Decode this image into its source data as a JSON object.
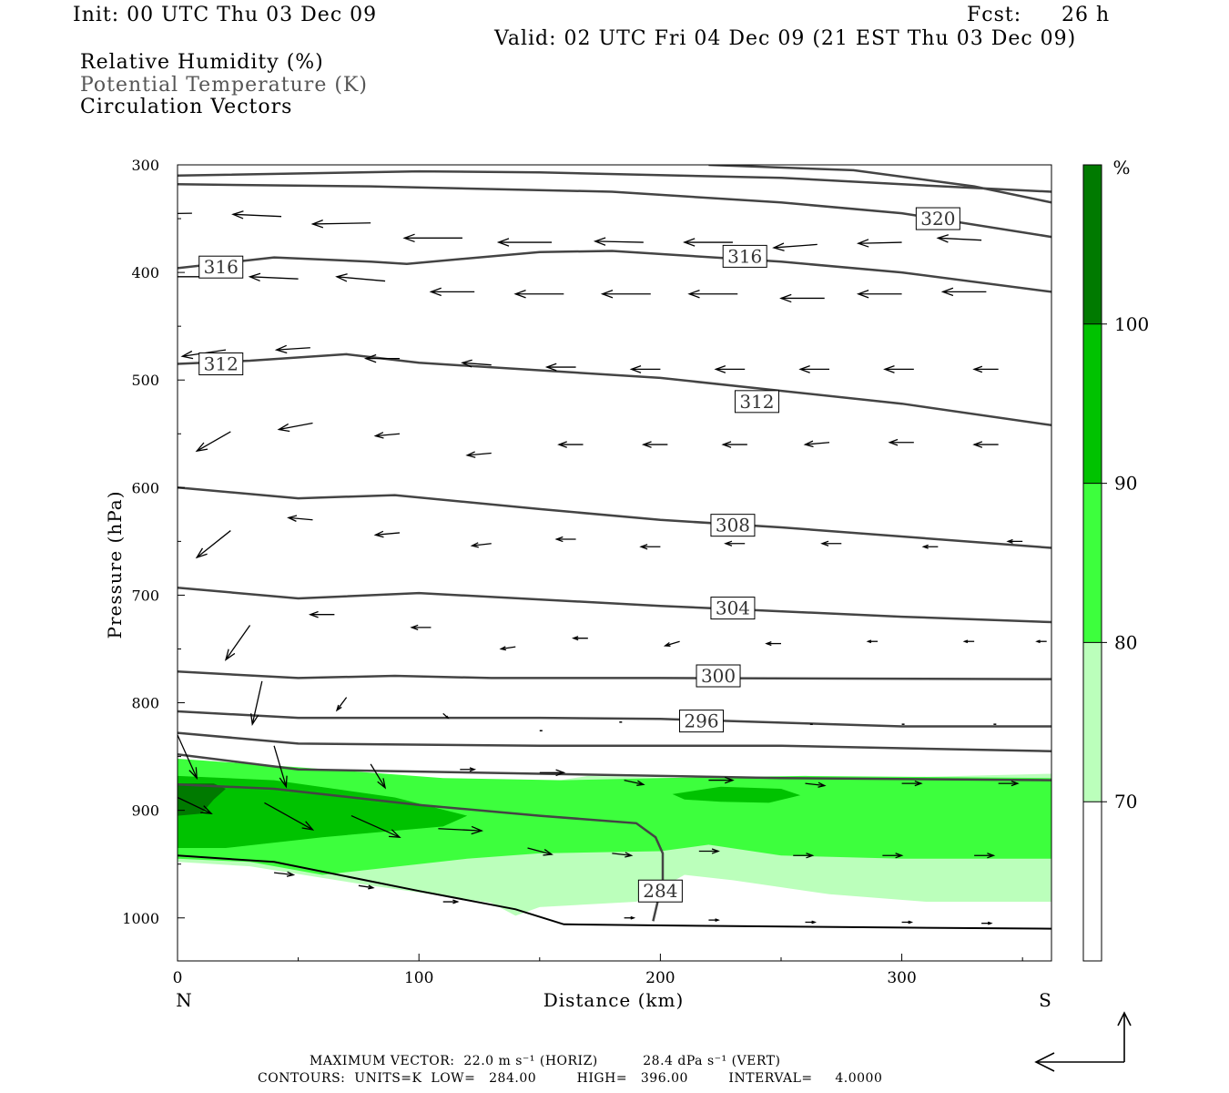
{
  "header": {
    "init": "Init: 00 UTC Thu 03 Dec 09",
    "fcst_label": "Fcst:",
    "fcst_value": "26 h",
    "valid": "Valid: 02 UTC Fri 04 Dec 09 (21 EST Thu 03 Dec 09)",
    "fields": [
      "Relative Humidity (%)",
      "Potential Temperature (K)",
      "Circulation Vectors"
    ]
  },
  "colors": {
    "rh_70": "#bbffbb",
    "rh_80": "#3dff3d",
    "rh_90": "#00c200",
    "rh_100": "#007a00",
    "contour": "#444444"
  },
  "chart_data": {
    "type": "cross-section",
    "xlabel": "Distance (km)",
    "ylabel": "Pressure (hPa)",
    "xlim": [
      0,
      362
    ],
    "ylim": [
      1040,
      300
    ],
    "x_ticks": [
      "0",
      "100",
      "200",
      "300"
    ],
    "y_ticks": [
      "300",
      "400",
      "500",
      "600",
      "700",
      "800",
      "900",
      "1000"
    ],
    "left_end_label": "N",
    "right_end_label": "S",
    "colorbar": {
      "unit": "%",
      "levels": [
        "70",
        "80",
        "90",
        "100"
      ]
    },
    "theta_contours": [
      {
        "label": "",
        "pts": [
          [
            0,
            310
          ],
          [
            100,
            306
          ],
          [
            150,
            307
          ],
          [
            250,
            312
          ],
          [
            300,
            318
          ],
          [
            362,
            325
          ]
        ]
      },
      {
        "label": "",
        "pts": [
          [
            220,
            300
          ],
          [
            280,
            305
          ],
          [
            330,
            320
          ],
          [
            362,
            335
          ]
        ]
      },
      {
        "label": "320",
        "label_at": [
          315,
          350
        ],
        "pts": [
          [
            0,
            318
          ],
          [
            80,
            320
          ],
          [
            120,
            322
          ],
          [
            180,
            325
          ],
          [
            250,
            335
          ],
          [
            300,
            345
          ],
          [
            362,
            367
          ]
        ]
      },
      {
        "label": "316",
        "label_at": [
          18,
          395
        ],
        "pts": [
          [
            0,
            396
          ],
          [
            40,
            386
          ],
          [
            80,
            390
          ],
          [
            95,
            392
          ],
          [
            150,
            381
          ],
          [
            180,
            380
          ],
          [
            250,
            390
          ],
          [
            300,
            400
          ],
          [
            362,
            418
          ]
        ]
      },
      {
        "label": "316",
        "label_at": [
          235,
          385
        ],
        "pts": []
      },
      {
        "label": "312",
        "label_at": [
          18,
          485
        ],
        "pts": [
          [
            0,
            485
          ],
          [
            30,
            482
          ],
          [
            70,
            476
          ],
          [
            100,
            484
          ],
          [
            200,
            498
          ],
          [
            300,
            522
          ],
          [
            362,
            542
          ]
        ]
      },
      {
        "label": "312",
        "label_at": [
          240,
          520
        ],
        "pts": []
      },
      {
        "label": "308",
        "label_at": [
          230,
          635
        ],
        "pts": [
          [
            0,
            600
          ],
          [
            50,
            610
          ],
          [
            90,
            607
          ],
          [
            150,
            620
          ],
          [
            200,
            630
          ],
          [
            250,
            637
          ],
          [
            362,
            656
          ]
        ]
      },
      {
        "label": "304",
        "label_at": [
          230,
          712
        ],
        "pts": [
          [
            0,
            693
          ],
          [
            50,
            703
          ],
          [
            100,
            698
          ],
          [
            200,
            710
          ],
          [
            300,
            720
          ],
          [
            362,
            725
          ]
        ]
      },
      {
        "label": "300",
        "label_at": [
          224,
          775
        ],
        "pts": [
          [
            0,
            771
          ],
          [
            50,
            777
          ],
          [
            90,
            775
          ],
          [
            130,
            777
          ],
          [
            200,
            777
          ],
          [
            362,
            778
          ]
        ]
      },
      {
        "label": "296",
        "label_at": [
          217,
          817
        ],
        "pts": [
          [
            0,
            808
          ],
          [
            50,
            814
          ],
          [
            150,
            814
          ],
          [
            200,
            815
          ],
          [
            300,
            822
          ],
          [
            362,
            822
          ]
        ]
      },
      {
        "label": "",
        "pts": [
          [
            0,
            828
          ],
          [
            50,
            838
          ],
          [
            150,
            840
          ],
          [
            250,
            840
          ],
          [
            362,
            845
          ]
        ]
      },
      {
        "label": "",
        "pts": [
          [
            0,
            848
          ],
          [
            50,
            862
          ],
          [
            150,
            866
          ],
          [
            250,
            870
          ],
          [
            362,
            872
          ]
        ]
      },
      {
        "label": "",
        "pts": [
          [
            0,
            876
          ],
          [
            40,
            880
          ],
          [
            100,
            895
          ],
          [
            150,
            905
          ],
          [
            190,
            912
          ],
          [
            198,
            925
          ],
          [
            201,
            940
          ],
          [
            201,
            965
          ],
          [
            197,
            1003
          ]
        ]
      },
      {
        "label": "284",
        "label_at": [
          200,
          975
        ],
        "pts": []
      }
    ],
    "surface": [
      [
        0,
        942
      ],
      [
        40,
        948
      ],
      [
        100,
        975
      ],
      [
        140,
        992
      ],
      [
        160,
        1006
      ],
      [
        200,
        1007
      ],
      [
        300,
        1009
      ],
      [
        362,
        1010
      ]
    ],
    "rh_fill": [
      {
        "level": "70",
        "pts": [
          [
            0,
            860
          ],
          [
            60,
            865
          ],
          [
            120,
            872
          ],
          [
            150,
            875
          ],
          [
            170,
            868
          ],
          [
            250,
            872
          ],
          [
            362,
            866
          ],
          [
            362,
            985
          ],
          [
            310,
            985
          ],
          [
            270,
            978
          ],
          [
            230,
            965
          ],
          [
            210,
            960
          ],
          [
            190,
            985
          ],
          [
            150,
            990
          ],
          [
            140,
            998
          ],
          [
            130,
            986
          ],
          [
            80,
            970
          ],
          [
            30,
            952
          ],
          [
            0,
            948
          ]
        ]
      },
      {
        "level": "80",
        "pts": [
          [
            0,
            852
          ],
          [
            50,
            860
          ],
          [
            110,
            870
          ],
          [
            160,
            872
          ],
          [
            200,
            870
          ],
          [
            260,
            868
          ],
          [
            362,
            870
          ],
          [
            362,
            945
          ],
          [
            300,
            945
          ],
          [
            250,
            942
          ],
          [
            220,
            932
          ],
          [
            200,
            938
          ],
          [
            150,
            940
          ],
          [
            120,
            945
          ],
          [
            80,
            955
          ],
          [
            60,
            960
          ],
          [
            30,
            948
          ],
          [
            0,
            945
          ]
        ]
      },
      {
        "level": "90",
        "pts": [
          [
            0,
            868
          ],
          [
            40,
            872
          ],
          [
            90,
            888
          ],
          [
            120,
            905
          ],
          [
            110,
            915
          ],
          [
            60,
            925
          ],
          [
            20,
            935
          ],
          [
            0,
            935
          ]
        ]
      },
      {
        "level": "90",
        "pts": [
          [
            205,
            885
          ],
          [
            225,
            878
          ],
          [
            250,
            880
          ],
          [
            258,
            886
          ],
          [
            245,
            893
          ],
          [
            225,
            892
          ],
          [
            210,
            890
          ]
        ]
      },
      {
        "level": "100",
        "pts": [
          [
            0,
            875
          ],
          [
            15,
            875
          ],
          [
            20,
            880
          ],
          [
            15,
            890
          ],
          [
            10,
            903
          ],
          [
            0,
            905
          ]
        ]
      }
    ],
    "vectors": [
      [
        6,
        345,
        -30,
        1
      ],
      [
        43,
        348,
        -20,
        -2
      ],
      [
        80,
        354,
        -24,
        1
      ],
      [
        118,
        368,
        -24,
        0
      ],
      [
        155,
        372,
        -22,
        0
      ],
      [
        193,
        372,
        -20,
        -1
      ],
      [
        230,
        372,
        -20,
        0
      ],
      [
        265,
        374,
        -18,
        3
      ],
      [
        300,
        372,
        -18,
        1
      ],
      [
        333,
        370,
        -18,
        -2
      ],
      [
        12,
        404,
        -20,
        0
      ],
      [
        50,
        406,
        -20,
        -2
      ],
      [
        86,
        408,
        -20,
        -4
      ],
      [
        123,
        418,
        -18,
        0
      ],
      [
        160,
        420,
        -20,
        0
      ],
      [
        196,
        420,
        -20,
        0
      ],
      [
        232,
        420,
        -20,
        0
      ],
      [
        268,
        424,
        -18,
        0
      ],
      [
        300,
        420,
        -18,
        0
      ],
      [
        335,
        418,
        -18,
        0
      ],
      [
        20,
        472,
        -18,
        6
      ],
      [
        55,
        470,
        -14,
        2
      ],
      [
        92,
        480,
        -14,
        0
      ],
      [
        130,
        486,
        -12,
        -2
      ],
      [
        165,
        488,
        -12,
        0
      ],
      [
        200,
        490,
        -12,
        0
      ],
      [
        235,
        490,
        -12,
        0
      ],
      [
        270,
        490,
        -12,
        0
      ],
      [
        305,
        490,
        -12,
        0
      ],
      [
        340,
        490,
        -10,
        0
      ],
      [
        22,
        548,
        -14,
        18
      ],
      [
        56,
        540,
        -14,
        6
      ],
      [
        92,
        550,
        -10,
        2
      ],
      [
        130,
        568,
        -10,
        2
      ],
      [
        168,
        560,
        -10,
        0
      ],
      [
        203,
        560,
        -10,
        0
      ],
      [
        236,
        560,
        -10,
        0
      ],
      [
        270,
        558,
        -10,
        2
      ],
      [
        305,
        558,
        -10,
        0
      ],
      [
        340,
        560,
        -10,
        0
      ],
      [
        22,
        640,
        -14,
        25
      ],
      [
        56,
        630,
        -10,
        -2
      ],
      [
        92,
        642,
        -10,
        2
      ],
      [
        130,
        652,
        -8,
        2
      ],
      [
        165,
        648,
        -8,
        0
      ],
      [
        200,
        655,
        -8,
        0
      ],
      [
        235,
        652,
        -8,
        0
      ],
      [
        275,
        652,
        -8,
        0
      ],
      [
        315,
        655,
        -6,
        0
      ],
      [
        350,
        650,
        -6,
        0
      ],
      [
        30,
        728,
        -10,
        32
      ],
      [
        65,
        718,
        -10,
        0
      ],
      [
        105,
        730,
        -8,
        0
      ],
      [
        140,
        748,
        -6,
        2
      ],
      [
        170,
        740,
        -6,
        0
      ],
      [
        208,
        743,
        -6,
        4
      ],
      [
        250,
        745,
        -6,
        0
      ],
      [
        290,
        743,
        -4,
        0
      ],
      [
        330,
        743,
        -4,
        0
      ],
      [
        360,
        743,
        -4,
        0
      ],
      [
        35,
        780,
        -4,
        40
      ],
      [
        70,
        795,
        -4,
        12
      ],
      [
        110,
        810,
        2,
        4
      ],
      [
        150,
        826,
        0,
        0
      ],
      [
        183,
        818,
        0,
        0
      ],
      [
        218,
        820,
        0,
        0
      ],
      [
        262,
        820,
        0,
        0
      ],
      [
        300,
        820,
        0,
        0
      ],
      [
        338,
        820,
        0,
        0
      ],
      [
        0,
        830,
        8,
        40
      ],
      [
        40,
        840,
        5,
        38
      ],
      [
        80,
        857,
        6,
        22
      ],
      [
        117,
        862,
        6,
        0
      ],
      [
        150,
        865,
        10,
        0
      ],
      [
        185,
        872,
        8,
        4
      ],
      [
        220,
        872,
        10,
        0
      ],
      [
        260,
        875,
        8,
        2
      ],
      [
        300,
        875,
        8,
        0
      ],
      [
        340,
        875,
        8,
        0
      ],
      [
        0,
        888,
        14,
        15
      ],
      [
        36,
        893,
        20,
        25
      ],
      [
        72,
        905,
        20,
        20
      ],
      [
        108,
        917,
        18,
        2
      ],
      [
        145,
        935,
        10,
        6
      ],
      [
        180,
        940,
        8,
        2
      ],
      [
        216,
        938,
        8,
        0
      ],
      [
        255,
        942,
        8,
        0
      ],
      [
        292,
        942,
        8,
        0
      ],
      [
        330,
        942,
        8,
        0
      ],
      [
        40,
        958,
        8,
        2
      ],
      [
        75,
        970,
        6,
        2
      ],
      [
        110,
        985,
        6,
        0
      ],
      [
        185,
        1000,
        4,
        0
      ],
      [
        220,
        1002,
        4,
        0
      ],
      [
        260,
        1004,
        4,
        0
      ],
      [
        300,
        1004,
        4,
        0
      ],
      [
        333,
        1005,
        4,
        0
      ]
    ]
  },
  "footer": {
    "max_vector": "MAXIMUM VECTOR:  22.0 m s⁻¹ (HORIZ)          28.4 dPa s⁻¹ (VERT)",
    "contours": "CONTOURS:  UNITS=K  LOW=   284.00         HIGH=   396.00         INTERVAL=     4.0000"
  }
}
